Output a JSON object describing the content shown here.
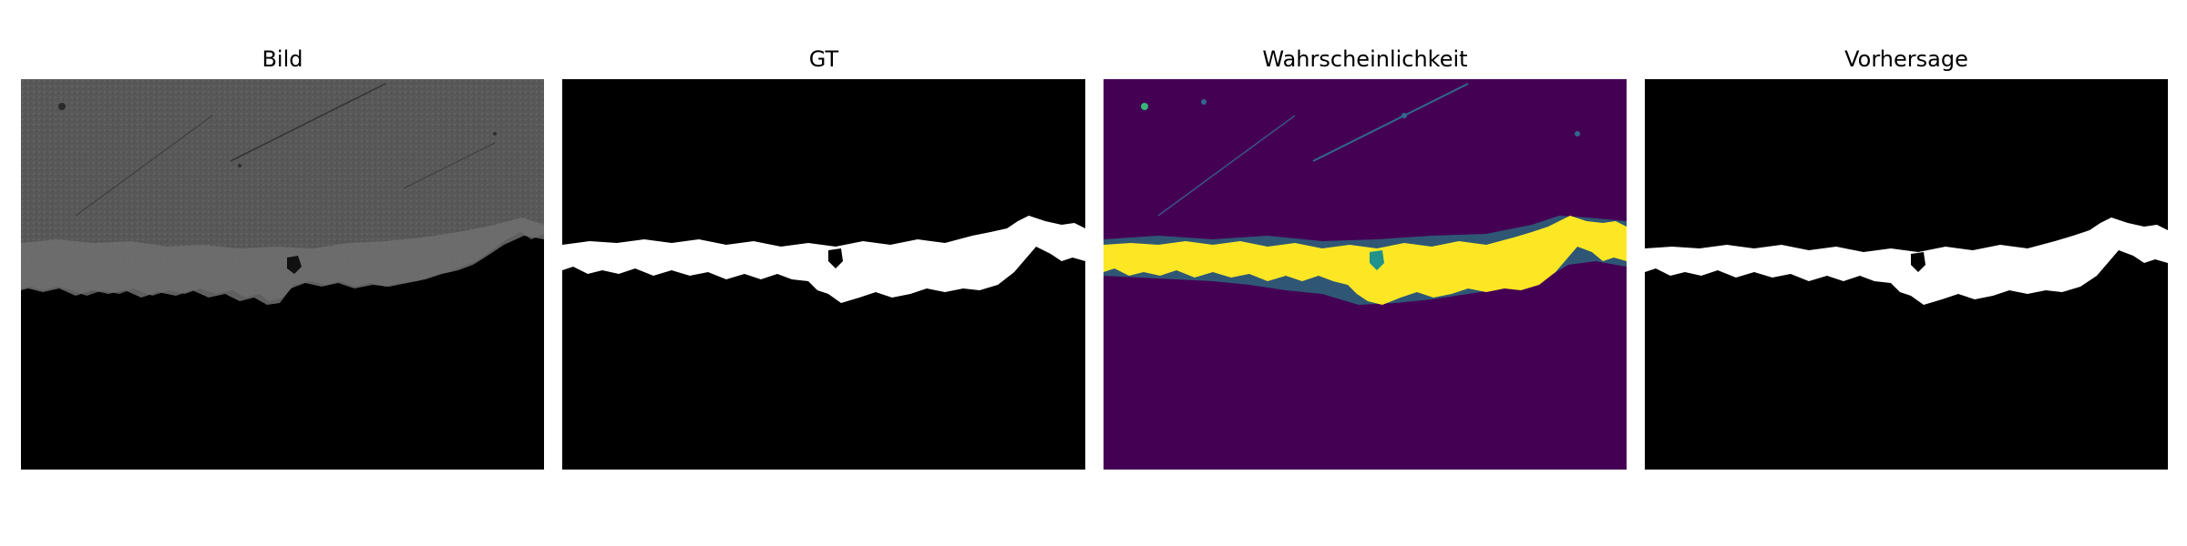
{
  "panels": [
    {
      "title": "Bild",
      "kind": "image"
    },
    {
      "title": "GT",
      "kind": "mask"
    },
    {
      "title": "Wahrscheinlichkeit",
      "kind": "probability"
    },
    {
      "title": "Vorhersage",
      "kind": "mask"
    }
  ],
  "colors": {
    "background": "#ffffff",
    "mask_background": "#000000",
    "mask_foreground": "#ffffff",
    "image_top": "#5a5a5a",
    "image_band": "#6e6e6e",
    "image_bottom": "#000000",
    "viridis_low": "#440154",
    "viridis_mid": "#21918c",
    "viridis_high": "#fde725"
  }
}
